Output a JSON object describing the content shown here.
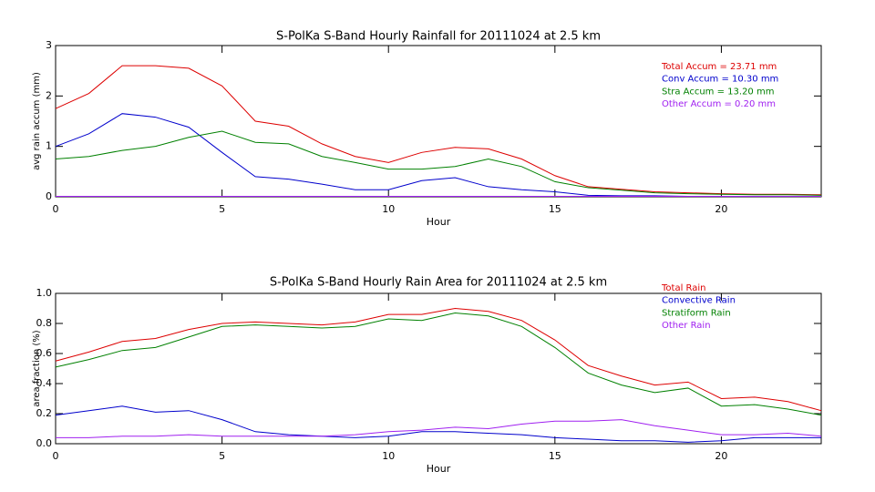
{
  "chart_data": [
    {
      "type": "line",
      "title": "S-PolKa S-Band Hourly Rainfall for 20111024 at 2.5 km",
      "x_label": "Hour",
      "y_label": "avg rain accum (mm)",
      "x": [
        0,
        1,
        2,
        3,
        4,
        5,
        6,
        7,
        8,
        9,
        10,
        11,
        12,
        13,
        14,
        15,
        16,
        17,
        18,
        19,
        20,
        21,
        22,
        23
      ],
      "xlim": [
        0,
        23
      ],
      "xticks": [
        0,
        5,
        10,
        15,
        20
      ],
      "ylim": [
        0,
        3
      ],
      "yticks": [
        0,
        1,
        2,
        3
      ],
      "series": [
        {
          "name": "Total Accum = 23.71 mm",
          "color": "#dd0000",
          "values": [
            1.75,
            2.05,
            2.6,
            2.6,
            2.55,
            2.2,
            1.5,
            1.4,
            1.05,
            0.8,
            0.68,
            0.88,
            0.98,
            0.95,
            0.75,
            0.42,
            0.2,
            0.15,
            0.1,
            0.08,
            0.06,
            0.05,
            0.05,
            0.04
          ]
        },
        {
          "name": "Conv Accum = 10.30 mm",
          "color": "#0000cc",
          "values": [
            1.0,
            1.25,
            1.65,
            1.58,
            1.38,
            0.88,
            0.4,
            0.35,
            0.25,
            0.14,
            0.14,
            0.32,
            0.38,
            0.2,
            0.14,
            0.1,
            0.03,
            0.02,
            0.02,
            0.01,
            0.01,
            0.01,
            0.01,
            0.01
          ]
        },
        {
          "name": "Stra Accum = 13.20 mm",
          "color": "#008000",
          "values": [
            0.75,
            0.8,
            0.92,
            1.0,
            1.18,
            1.3,
            1.08,
            1.05,
            0.8,
            0.68,
            0.55,
            0.55,
            0.6,
            0.75,
            0.6,
            0.3,
            0.18,
            0.13,
            0.08,
            0.06,
            0.05,
            0.04,
            0.04,
            0.03
          ]
        },
        {
          "name": "Other Accum = 0.20 mm",
          "color": "#a020f0",
          "values": [
            0.01,
            0.01,
            0.01,
            0.01,
            0.01,
            0.01,
            0.01,
            0.01,
            0.01,
            0.01,
            0.01,
            0.01,
            0.01,
            0.01,
            0.01,
            0.01,
            0.01,
            0.01,
            0.01,
            0.01,
            0.01,
            0.01,
            0.01,
            0.01
          ]
        }
      ]
    },
    {
      "type": "line",
      "title": "S-PolKa S-Band Hourly Rain Area for 20111024 at 2.5 km",
      "x_label": "Hour",
      "y_label": "area fraction (%)",
      "x": [
        0,
        1,
        2,
        3,
        4,
        5,
        6,
        7,
        8,
        9,
        10,
        11,
        12,
        13,
        14,
        15,
        16,
        17,
        18,
        19,
        20,
        21,
        22,
        23
      ],
      "xlim": [
        0,
        23
      ],
      "xticks": [
        0,
        5,
        10,
        15,
        20
      ],
      "ylim": [
        0,
        1
      ],
      "yticks": [
        {
          "value": 0,
          "label": "0.0"
        },
        0.2,
        0.4,
        0.6,
        0.8,
        {
          "value": 1,
          "label": "1.0"
        }
      ],
      "series": [
        {
          "name": "Total Rain",
          "color": "#dd0000",
          "values": [
            0.55,
            0.61,
            0.68,
            0.7,
            0.76,
            0.8,
            0.81,
            0.8,
            0.79,
            0.81,
            0.86,
            0.86,
            0.9,
            0.88,
            0.82,
            0.69,
            0.52,
            0.45,
            0.39,
            0.41,
            0.3,
            0.31,
            0.28,
            0.22
          ]
        },
        {
          "name": "Convective Rain",
          "color": "#0000cc",
          "values": [
            0.19,
            0.22,
            0.25,
            0.21,
            0.22,
            0.16,
            0.08,
            0.06,
            0.05,
            0.04,
            0.05,
            0.08,
            0.08,
            0.07,
            0.06,
            0.04,
            0.03,
            0.02,
            0.02,
            0.01,
            0.02,
            0.04,
            0.04,
            0.04
          ]
        },
        {
          "name": "Stratiform Rain",
          "color": "#008000",
          "values": [
            0.51,
            0.56,
            0.62,
            0.64,
            0.71,
            0.78,
            0.79,
            0.78,
            0.77,
            0.78,
            0.83,
            0.82,
            0.87,
            0.85,
            0.78,
            0.64,
            0.47,
            0.39,
            0.34,
            0.37,
            0.25,
            0.26,
            0.23,
            0.19
          ]
        },
        {
          "name": "Other Rain",
          "color": "#a020f0",
          "values": [
            0.04,
            0.04,
            0.05,
            0.05,
            0.06,
            0.05,
            0.05,
            0.05,
            0.05,
            0.06,
            0.08,
            0.09,
            0.11,
            0.1,
            0.13,
            0.15,
            0.15,
            0.16,
            0.12,
            0.09,
            0.06,
            0.06,
            0.07,
            0.05
          ]
        }
      ]
    }
  ]
}
